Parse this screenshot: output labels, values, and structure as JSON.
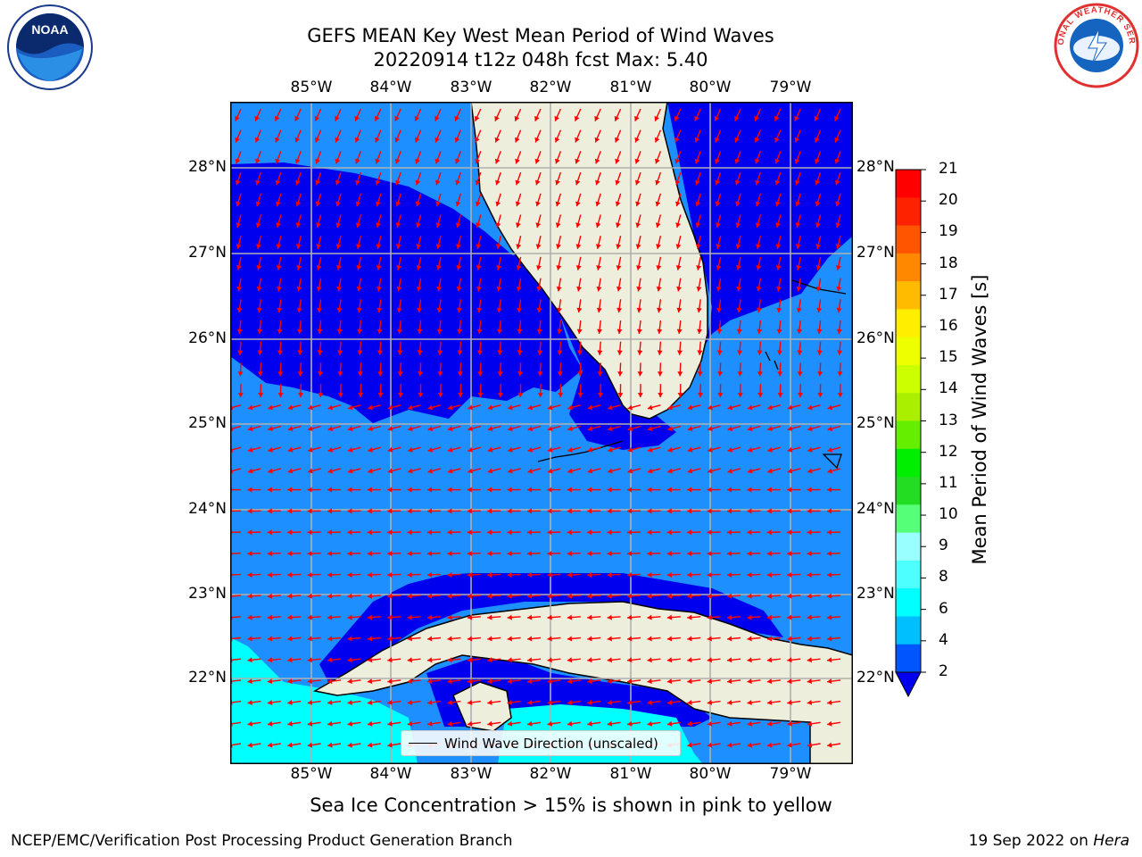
{
  "title": {
    "line1": "GEFS MEAN Key West Mean Period of Wind Waves",
    "line2": "20220914 t12z 048h fcst   Max: 5.40"
  },
  "lon_labels": [
    "85°W",
    "84°W",
    "83°W",
    "82°W",
    "81°W",
    "80°W",
    "79°W"
  ],
  "lat_labels": [
    "28°N",
    "27°N",
    "26°N",
    "25°N",
    "24°N",
    "23°N",
    "22°N"
  ],
  "colorbar": {
    "title": "Mean Period of Wind Waves [s]",
    "ticks": [
      "2",
      "4",
      "6",
      "8",
      "9",
      "10",
      "11",
      "12",
      "13",
      "14",
      "15",
      "16",
      "17",
      "18",
      "19",
      "20",
      "21"
    ],
    "colors": [
      "#0055ff",
      "#00bfff",
      "#00ffff",
      "#4dffff",
      "#99ffff",
      "#55ff77",
      "#22dd22",
      "#00ee00",
      "#66ee00",
      "#aaee00",
      "#ccff00",
      "#eeff00",
      "#ffee00",
      "#ffbb00",
      "#ff8800",
      "#ff5500",
      "#ff2200",
      "#ff0000"
    ],
    "extend_color": "#0000ee"
  },
  "legend": {
    "label": "Wind Wave Direction (unscaled)"
  },
  "subtitle": "Sea Ice Concentration > 15% is shown in pink to yellow",
  "footer": {
    "left": "NCEP/EMC/Verification Post Processing Product Generation Branch",
    "date": "19 Sep 2022 on ",
    "host": "Hera"
  },
  "logos": {
    "noaa_text": "NOAA",
    "nws_text": "NATIONAL WEATHER SERVICE"
  },
  "colors": {
    "land": "#eeeedd",
    "deep_blue": "#0000ee",
    "mid_blue": "#1e8fff",
    "cyan": "#00ffff",
    "arrow": "#ff0000",
    "grid": "#b0b0b0"
  }
}
